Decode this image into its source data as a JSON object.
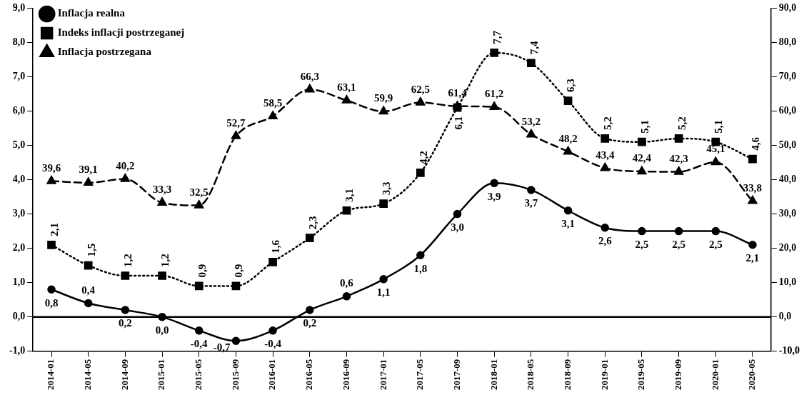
{
  "chart_data": {
    "type": "line",
    "categories": [
      "2014-01",
      "2014-05",
      "2014-09",
      "2015-01",
      "2015-05",
      "2015-09",
      "2016-01",
      "2016-05",
      "2016-09",
      "2017-01",
      "2017-05",
      "2017-09",
      "2018-01",
      "2018-05",
      "2018-09",
      "2019-01",
      "2019-05",
      "2019-09",
      "2020-01",
      "2020-05"
    ],
    "series": [
      {
        "name": "Inflacja realna",
        "color": "#000000",
        "marker": "circle",
        "line_style": "solid",
        "values": [
          0.8,
          0.4,
          0.2,
          0.0,
          -0.4,
          -0.7,
          -0.4,
          0.2,
          0.6,
          1.1,
          1.8,
          3.0,
          3.9,
          3.7,
          3.1,
          2.6,
          2.5,
          2.5,
          2.5,
          2.1
        ],
        "value_labels": [
          "0,8",
          "0,4",
          "0,2",
          "0,0",
          "-0,4",
          "-0,7",
          "-0,4",
          "0,2",
          "0,6",
          "1,1",
          "1,8",
          "3,0",
          "3,9",
          "3,7",
          "3,1",
          "2,6",
          "2,5",
          "2,5",
          "2,5",
          "2,1"
        ]
      },
      {
        "name": "Indeks inflacji postrzeganej",
        "color": "#000000",
        "marker": "square",
        "line_style": "dotted",
        "values": [
          2.1,
          1.5,
          1.2,
          1.2,
          0.9,
          0.9,
          1.6,
          2.3,
          3.1,
          3.3,
          4.2,
          6.1,
          7.7,
          7.4,
          6.3,
          5.2,
          5.1,
          5.2,
          5.1,
          4.6
        ],
        "value_labels": [
          "2,1",
          "1,5",
          "1,2",
          "1,2",
          "0,9",
          "0,9",
          "1,6",
          "2,3",
          "3,1",
          "3,3",
          "4,2",
          "6,1",
          "7,7",
          "7,4",
          "6,3",
          "5,2",
          "5,1",
          "5,2",
          "5,1",
          "4,6"
        ]
      },
      {
        "name": "Inflacja postrzegana",
        "color": "#000000",
        "marker": "triangle",
        "line_style": "dashed",
        "axis": "y2",
        "values": [
          39.6,
          39.1,
          40.2,
          33.3,
          32.5,
          52.7,
          58.5,
          66.3,
          63.1,
          59.9,
          62.5,
          61.4,
          61.2,
          53.2,
          48.2,
          43.4,
          42.4,
          42.3,
          45.1,
          33.8
        ],
        "value_labels": [
          "39,6",
          "39,1",
          "40,2",
          "33,3",
          "32,5",
          "52,7",
          "58,5",
          "66,3",
          "63,1",
          "59,9",
          "62,5",
          "61,4",
          "61,2",
          "53,2",
          "48,2",
          "43,4",
          "42,4",
          "42,3",
          "45,1",
          "33,8"
        ]
      }
    ],
    "ylim": [
      -1,
      9
    ],
    "yticks": [
      {
        "value": -1,
        "label": "-1,0"
      },
      {
        "value": 0,
        "label": "0,0"
      },
      {
        "value": 1,
        "label": "1,0"
      },
      {
        "value": 2,
        "label": "2,0"
      },
      {
        "value": 3,
        "label": "3,0"
      },
      {
        "value": 4,
        "label": "4,0"
      },
      {
        "value": 5,
        "label": "5,0"
      },
      {
        "value": 6,
        "label": "6,0"
      },
      {
        "value": 7,
        "label": "7,0"
      },
      {
        "value": 8,
        "label": "8,0"
      },
      {
        "value": 9,
        "label": "9,0"
      }
    ],
    "y2lim": [
      -10,
      90
    ],
    "y2ticks": [
      {
        "value": -10,
        "label": "-10,0"
      },
      {
        "value": 0,
        "label": "0,0"
      },
      {
        "value": 10,
        "label": "10,0"
      },
      {
        "value": 20,
        "label": "20,0"
      },
      {
        "value": 30,
        "label": "30,0"
      },
      {
        "value": 40,
        "label": "40,0"
      },
      {
        "value": 50,
        "label": "50,0"
      },
      {
        "value": 60,
        "label": "60,0"
      },
      {
        "value": 70,
        "label": "70,0"
      },
      {
        "value": 80,
        "label": "80,0"
      },
      {
        "value": 90,
        "label": "90,0"
      }
    ],
    "ref_lines": [
      {
        "axis": "y",
        "value": 0,
        "color": "#000000"
      }
    ],
    "legend": "top left"
  }
}
